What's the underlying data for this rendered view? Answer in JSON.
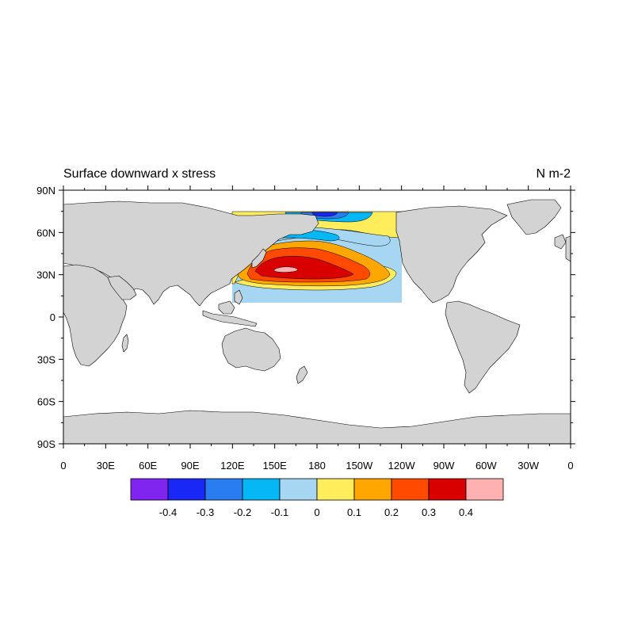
{
  "chart_data": {
    "type": "filled contour map",
    "title": "Surface downward x stress",
    "units": "N m-2",
    "projection": "cylindrical equidistant",
    "lon_range": [
      0,
      360
    ],
    "lat_range": [
      -90,
      90
    ],
    "lat_ticks": [
      "90N",
      "60N",
      "30N",
      "0",
      "30S",
      "60S",
      "90S"
    ],
    "lon_ticks": [
      "0",
      "30E",
      "60E",
      "90E",
      "120E",
      "150E",
      "180",
      "150W",
      "120W",
      "90W",
      "60W",
      "30W",
      "0"
    ],
    "data_region": {
      "lon_min": 120,
      "lon_max": 240,
      "lat_min": 10,
      "lat_max": 75
    },
    "levels": [
      -0.4,
      -0.3,
      -0.2,
      -0.1,
      0,
      0.1,
      0.2,
      0.3,
      0.4
    ],
    "level_labels": [
      "-0.4",
      "-0.3",
      "-0.2",
      "-0.1",
      "0",
      "0.1",
      "0.2",
      "0.3",
      "0.4"
    ],
    "colors": [
      "#8025f0",
      "#1a28f5",
      "#2a7df0",
      "#05b8f5",
      "#a6d6f2",
      "#ffed5c",
      "#ffa600",
      "#ff4a00",
      "#d90000",
      "#ffb0b0"
    ],
    "land_color": "#d3d3d3"
  }
}
